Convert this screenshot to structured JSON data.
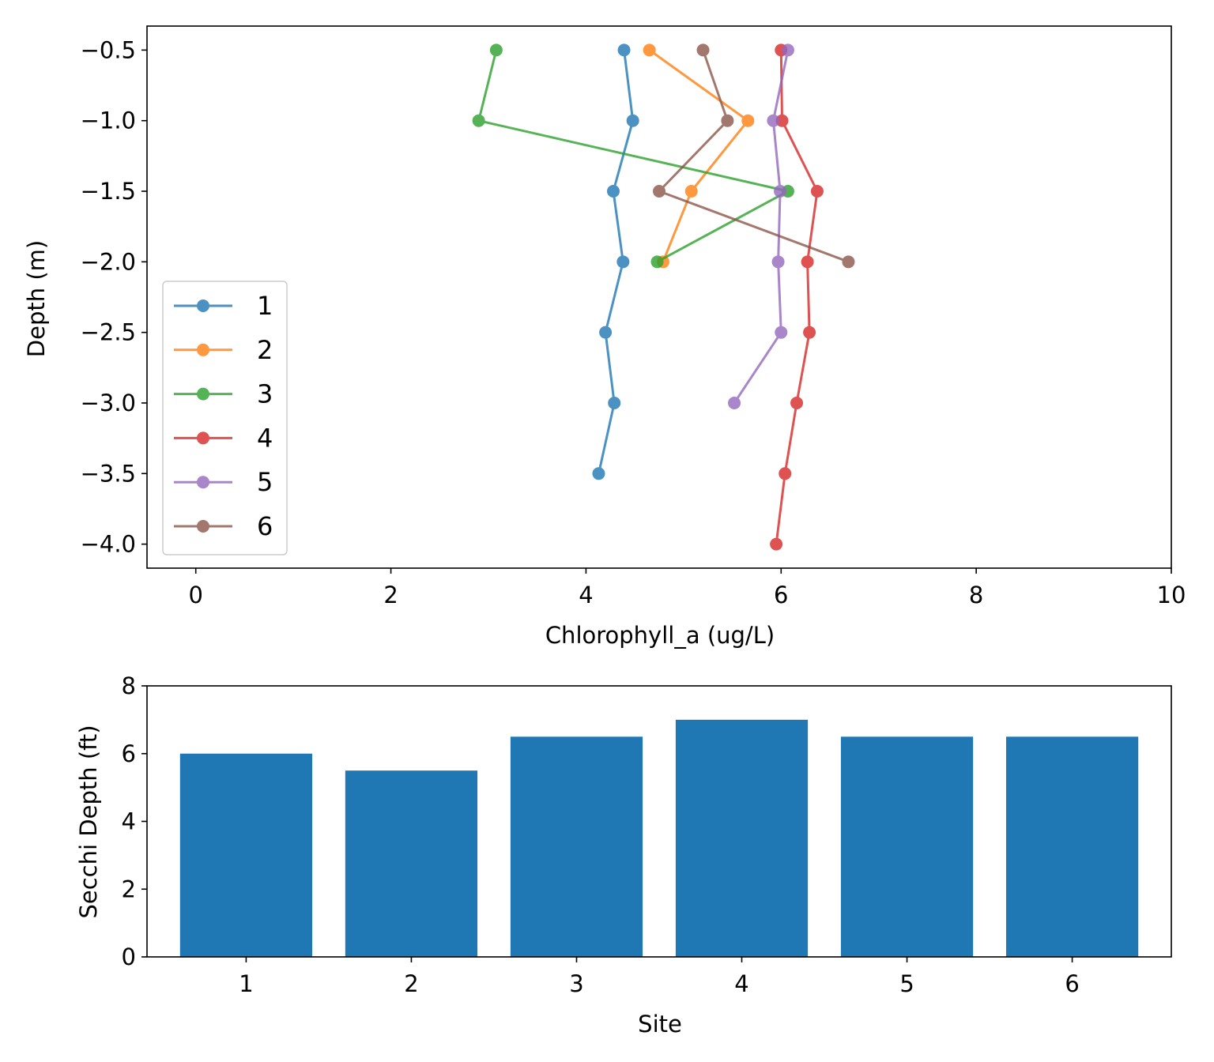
{
  "chart_data": [
    {
      "type": "line",
      "xlabel": "Chlorophyll_a  (ug/L)",
      "ylabel": "Depth (m)",
      "xlim": [
        -0.5,
        10
      ],
      "ylim": [
        -4.17,
        -0.33
      ],
      "xticks": [
        "0",
        "2",
        "4",
        "6",
        "8",
        "10"
      ],
      "xtick_values": [
        0,
        2,
        4,
        6,
        8,
        10
      ],
      "yticks": [
        "−0.5",
        "−1.0",
        "−1.5",
        "−2.0",
        "−2.5",
        "−3.0",
        "−3.5",
        "−4.0"
      ],
      "ytick_values": [
        -0.5,
        -1.0,
        -1.5,
        -2.0,
        -2.5,
        -3.0,
        -3.5,
        -4.0
      ],
      "legend_location": "lower-left",
      "series": [
        {
          "name": "1",
          "color": "#1f77b4",
          "x": [
            4.39,
            4.48,
            4.28,
            4.38,
            4.2,
            4.29,
            4.13
          ],
          "y": [
            -0.5,
            -1.0,
            -1.5,
            -2.0,
            -2.5,
            -3.0,
            -3.5
          ]
        },
        {
          "name": "2",
          "color": "#ff7f0e",
          "x": [
            4.65,
            5.66,
            5.08,
            4.79
          ],
          "y": [
            -0.5,
            -1.0,
            -1.5,
            -2.0
          ]
        },
        {
          "name": "3",
          "color": "#2ca02c",
          "x": [
            3.08,
            2.9,
            6.07,
            4.73
          ],
          "y": [
            -0.5,
            -1.0,
            -1.5,
            -2.0
          ]
        },
        {
          "name": "4",
          "color": "#d62728",
          "x": [
            6.0,
            6.01,
            6.37,
            6.27,
            6.29,
            6.16,
            6.04,
            5.95
          ],
          "y": [
            -0.5,
            -1.0,
            -1.5,
            -2.0,
            -2.5,
            -3.0,
            -3.5,
            -4.0
          ]
        },
        {
          "name": "5",
          "color": "#9467bd",
          "x": [
            6.07,
            5.92,
            5.99,
            5.97,
            6.0,
            5.52
          ],
          "y": [
            -0.5,
            -1.0,
            -1.5,
            -2.0,
            -2.5,
            -3.0
          ]
        },
        {
          "name": "6",
          "color": "#8c564b",
          "x": [
            5.2,
            5.45,
            4.75,
            6.69
          ],
          "y": [
            -0.5,
            -1.0,
            -1.5,
            -2.0
          ]
        }
      ]
    },
    {
      "type": "bar",
      "xlabel": "Site",
      "ylabel": "Secchi Depth (ft)",
      "categories": [
        "1",
        "2",
        "3",
        "4",
        "5",
        "6"
      ],
      "values": [
        6.0,
        5.5,
        6.5,
        7.0,
        6.5,
        6.5
      ],
      "ylim": [
        0,
        8
      ],
      "yticks": [
        "0",
        "2",
        "4",
        "6",
        "8"
      ],
      "ytick_values": [
        0,
        2,
        4,
        6,
        8
      ],
      "color": "#1f77b4"
    }
  ]
}
